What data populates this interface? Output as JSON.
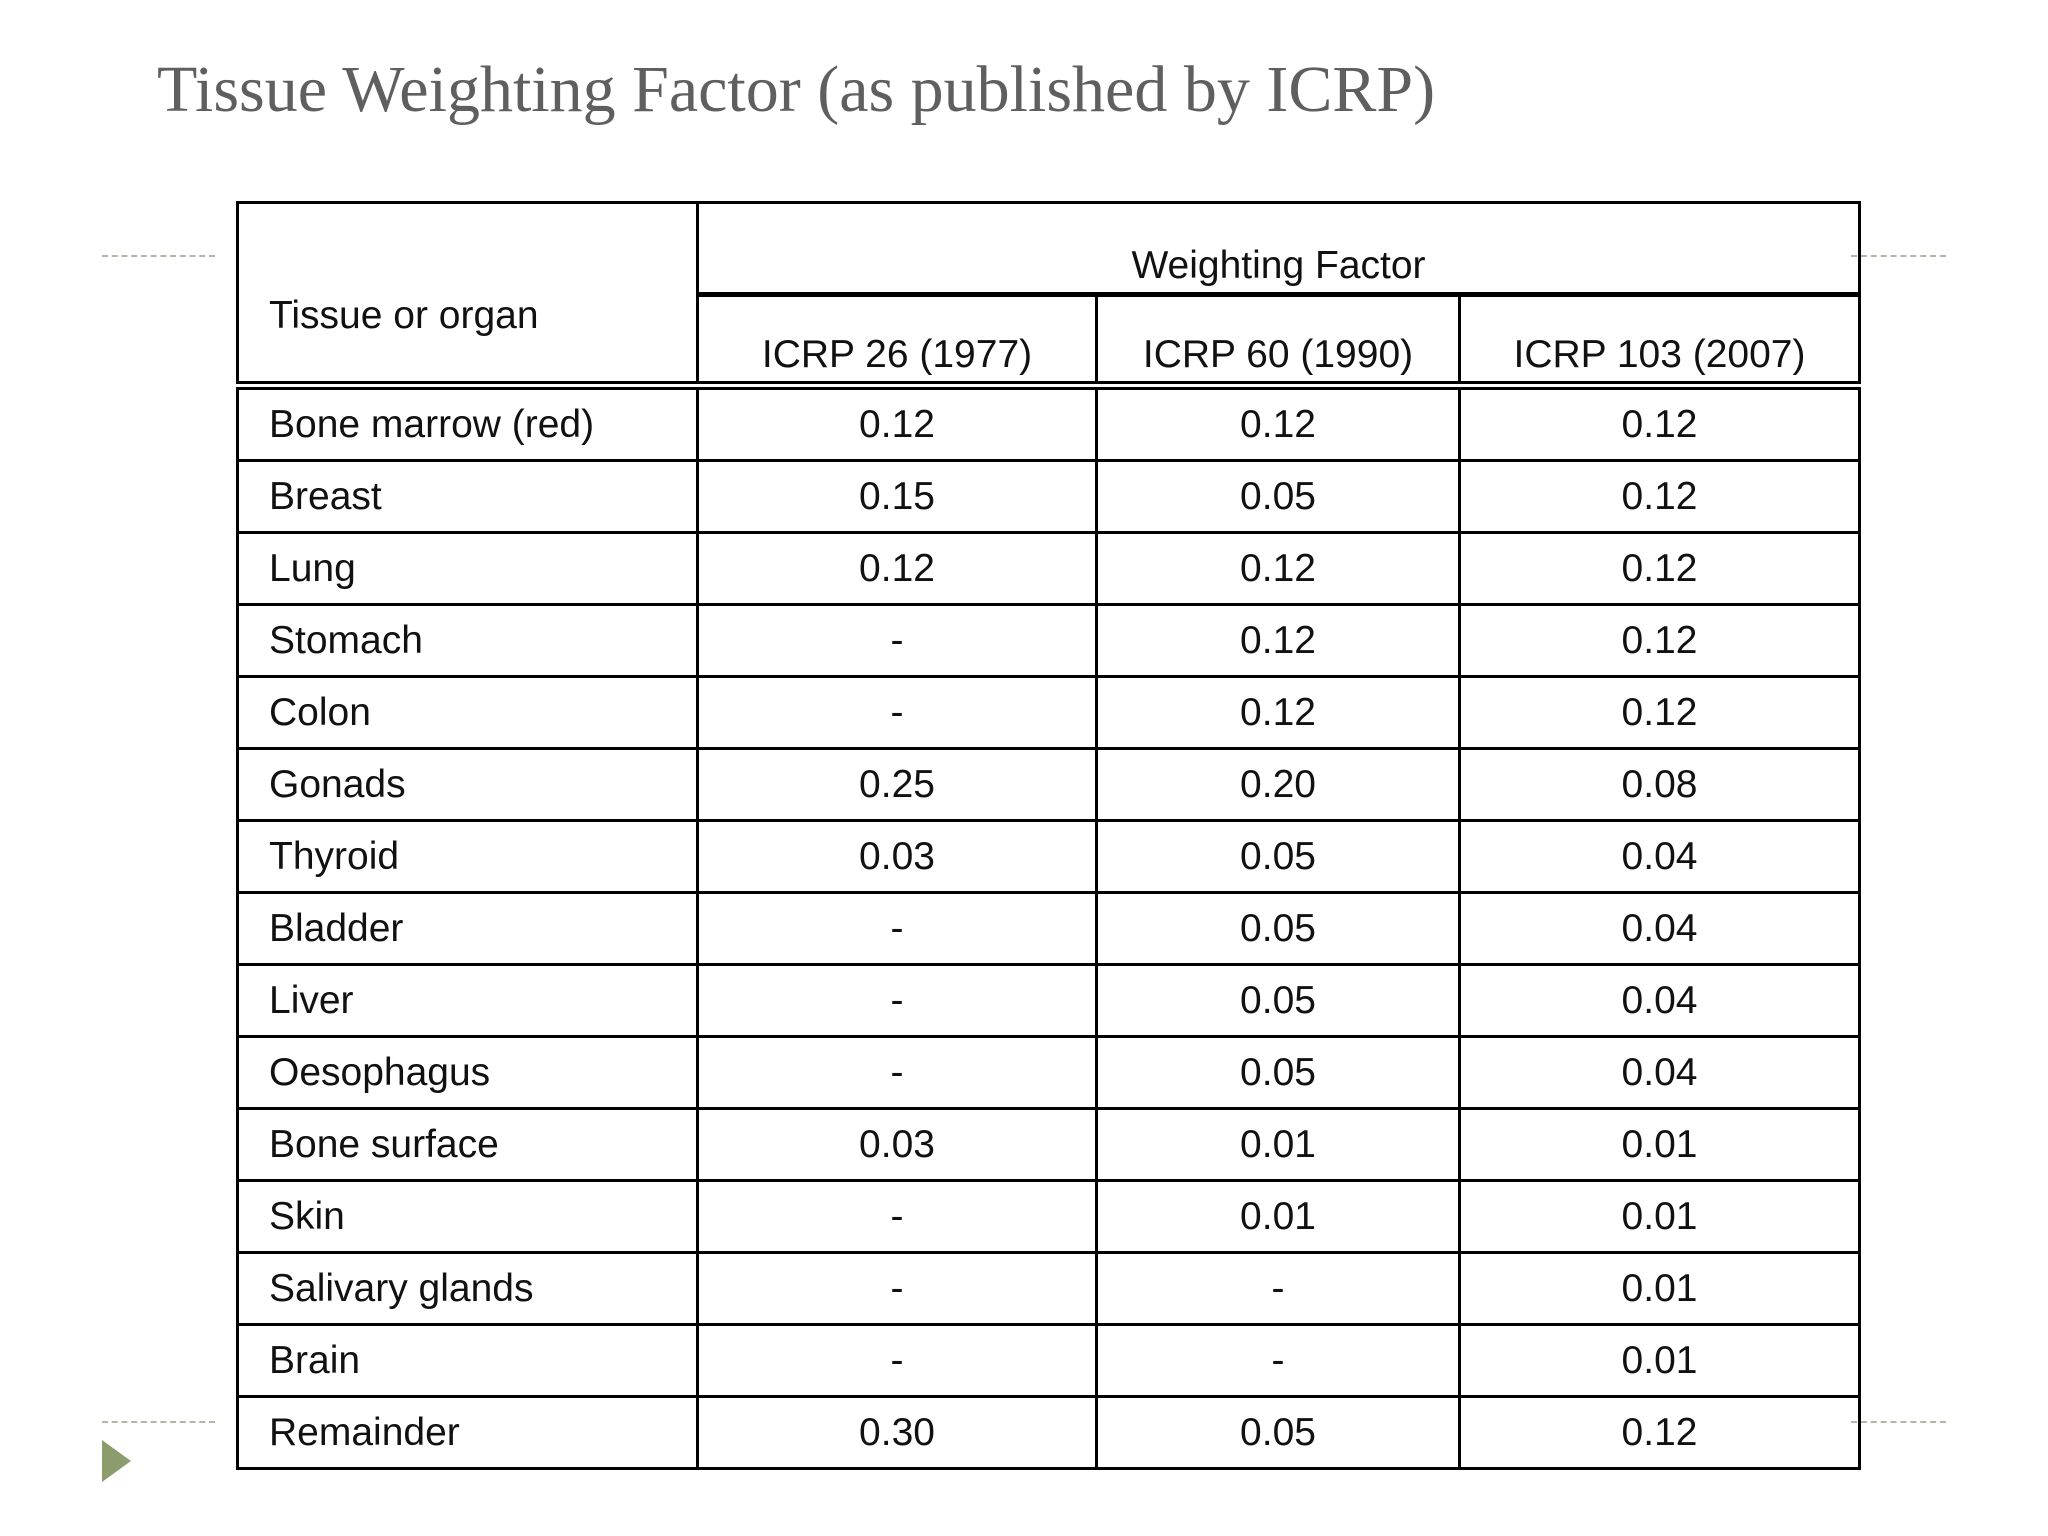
{
  "title": "Tissue Weighting Factor (as published by ICRP)",
  "table": {
    "corner_header": "Tissue or organ",
    "group_header": "Weighting Factor",
    "columns": [
      "ICRP 26 (1977)",
      "ICRP 60 (1990)",
      "ICRP 103 (2007)"
    ],
    "rows": [
      [
        "Bone marrow (red)",
        "0.12",
        "0.12",
        "0.12"
      ],
      [
        "Breast",
        "0.15",
        "0.05",
        "0.12"
      ],
      [
        "Lung",
        "0.12",
        "0.12",
        "0.12"
      ],
      [
        "Stomach",
        "-",
        "0.12",
        "0.12"
      ],
      [
        "Colon",
        "-",
        "0.12",
        "0.12"
      ],
      [
        "Gonads",
        "0.25",
        "0.20",
        "0.08"
      ],
      [
        "Thyroid",
        "0.03",
        "0.05",
        "0.04"
      ],
      [
        "Bladder",
        "-",
        "0.05",
        "0.04"
      ],
      [
        "Liver",
        "-",
        "0.05",
        "0.04"
      ],
      [
        "Oesophagus",
        "-",
        "0.05",
        "0.04"
      ],
      [
        "Bone surface",
        "0.03",
        "0.01",
        "0.01"
      ],
      [
        "Skin",
        "-",
        "0.01",
        "0.01"
      ],
      [
        "Salivary glands",
        "-",
        "-",
        "0.01"
      ],
      [
        "Brain",
        "-",
        "-",
        "0.01"
      ],
      [
        "Remainder",
        "0.30",
        "0.05",
        "0.12"
      ]
    ]
  }
}
